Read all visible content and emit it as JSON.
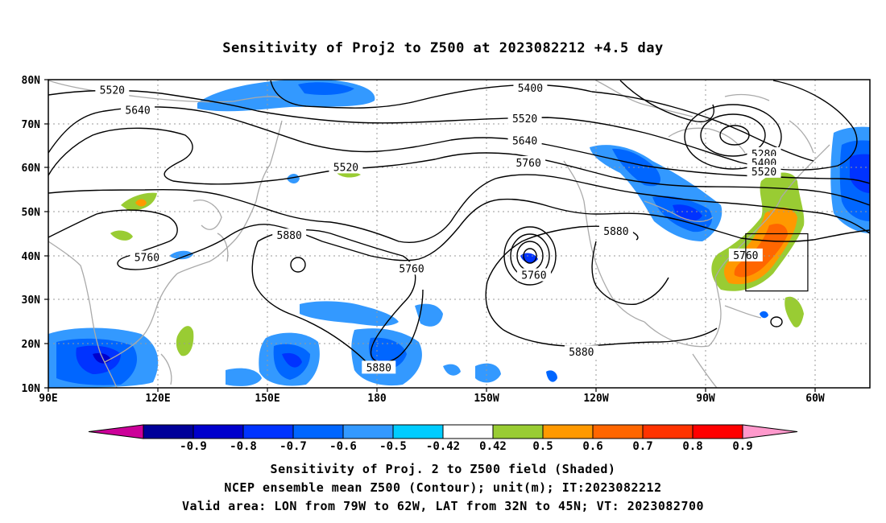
{
  "title": "Sensitivity of Proj2 to Z500 at 2023082212 +4.5 day",
  "lat_labels": [
    "80N",
    "70N",
    "60N",
    "50N",
    "40N",
    "30N",
    "20N",
    "10N"
  ],
  "lon_labels": [
    "90E",
    "120E",
    "150E",
    "180",
    "150W",
    "120W",
    "90W",
    "60W"
  ],
  "contour_labels": [
    {
      "text": "5520",
      "lon": 107.5,
      "lat": 77.5
    },
    {
      "text": "5640",
      "lon": 114.5,
      "lat": 73.0
    },
    {
      "text": "5400",
      "lon": -138.0,
      "lat": 78.0
    },
    {
      "text": "5520",
      "lon": -139.5,
      "lat": 71.0
    },
    {
      "text": "5640",
      "lon": -139.5,
      "lat": 66.0
    },
    {
      "text": "5760",
      "lon": -138.5,
      "lat": 61.0
    },
    {
      "text": "5520",
      "lon": 171.5,
      "lat": 60.0
    },
    {
      "text": "5280",
      "lon": -74.0,
      "lat": 63.0
    },
    {
      "text": "5400",
      "lon": -74.0,
      "lat": 61.0
    },
    {
      "text": "5520",
      "lon": -74.0,
      "lat": 59.0
    },
    {
      "text": "5880",
      "lon": 156.0,
      "lat": 44.5
    },
    {
      "text": "5760",
      "lon": 117.0,
      "lat": 39.5
    },
    {
      "text": "5760",
      "lon": 189.5,
      "lat": 37.0
    },
    {
      "text": "5760",
      "lon": 223.0,
      "lat": 35.5
    },
    {
      "text": "5880",
      "lon": 245.5,
      "lat": 45.5
    },
    {
      "text": "5760",
      "lon": 281.0,
      "lat": 40.0
    },
    {
      "text": "5880",
      "lon": 180.5,
      "lat": 14.5
    },
    {
      "text": "5880",
      "lon": 236.0,
      "lat": 18.0
    }
  ],
  "box": {
    "lon_w": -79,
    "lon_e": -62,
    "lat_s": 32,
    "lat_n": 45
  },
  "colorbar": {
    "labels": [
      "-0.9",
      "-0.8",
      "-0.7",
      "-0.6",
      "-0.5",
      "-0.42",
      "0.42",
      "0.5",
      "0.6",
      "0.7",
      "0.8",
      "0.9"
    ],
    "colors": [
      "#cc0099",
      "#000099",
      "#0000cc",
      "#0033ff",
      "#0066ff",
      "#3399ff",
      "#00ccff",
      "#ffffff",
      "#99cc33",
      "#ff9900",
      "#ff6600",
      "#ff3300",
      "#ff0000",
      "#ff99cc"
    ]
  },
  "captions": [
    "Sensitivity of Proj. 2 to Z500 field (Shaded)",
    "NCEP ensemble mean Z500 (Contour); unit(m); IT:2023082212",
    "Valid area: LON from 79W to 62W, LAT from 32N to 45N; VT: 2023082700"
  ]
}
